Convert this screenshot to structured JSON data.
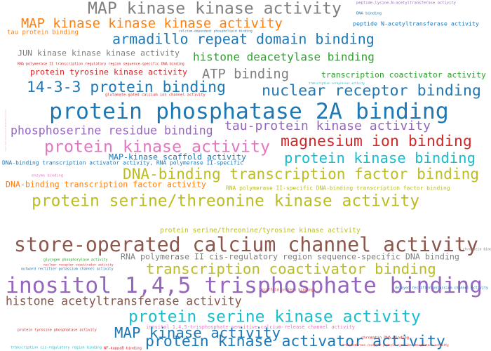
{
  "chart_data": {
    "type": "wordcloud",
    "words": [
      {
        "text": "MAP kinase kinase activity",
        "color": "#7f7f7f"
      },
      {
        "text": "MAP kinase kinase kinase activity",
        "color": "#ff7f0e"
      },
      {
        "text": "tau protein binding",
        "color": "#ff7f0e"
      },
      {
        "text": "armadillo repeat domain binding",
        "color": "#1f77b4"
      },
      {
        "text": "peptide N-acetyltransferase activity",
        "color": "#1f77b4"
      },
      {
        "text": "histone deacetylase binding",
        "color": "#2ca02c"
      },
      {
        "text": "JUN kinase kinase kinase activity",
        "color": "#7f7f7f"
      },
      {
        "text": "ATP binding",
        "color": "#7f7f7f"
      },
      {
        "text": "transcription coactivator activity",
        "color": "#2ca02c"
      },
      {
        "text": "RNA polymerase II transcription regulatory region sequence-specific DNA binding",
        "color": "#d62728"
      },
      {
        "text": "protein tyrosine kinase activity",
        "color": "#d62728"
      },
      {
        "text": "14-3-3 protein binding",
        "color": "#1f77b4"
      },
      {
        "text": "nuclear receptor binding",
        "color": "#1f77b4"
      },
      {
        "text": "glutamate-gated calcium ion channel activity",
        "color": "#d62728"
      },
      {
        "text": "protein phosphatase 2A binding",
        "color": "#1f77b4"
      },
      {
        "text": "phosphoserine residue binding",
        "color": "#9467bd"
      },
      {
        "text": "tau-protein kinase activity",
        "color": "#9467bd"
      },
      {
        "text": "protein kinase activity",
        "color": "#e377c2"
      },
      {
        "text": "magnesium ion binding",
        "color": "#d62728"
      },
      {
        "text": "protein kinase binding",
        "color": "#17becf"
      },
      {
        "text": "MAP-kinase scaffold activity",
        "color": "#1f77b4"
      },
      {
        "text": "DNA-binding transcription activator activity, RNA polymerase II-specific",
        "color": "#1f77b4"
      },
      {
        "text": "DNA-binding transcription factor binding",
        "color": "#bcbd22"
      },
      {
        "text": "DNA-binding transcription factor activity",
        "color": "#ff7f0e"
      },
      {
        "text": "RNA polymerase II-specific DNA-binding transcription factor binding",
        "color": "#bcbd22"
      },
      {
        "text": "protein serine/threonine kinase activity",
        "color": "#bcbd22"
      },
      {
        "text": "protein serine/threonine/tyrosine kinase activity",
        "color": "#bcbd22"
      },
      {
        "text": "store-operated calcium channel activity",
        "color": "#8c564b"
      },
      {
        "text": "RNA polymerase II cis-regulatory region sequence-specific DNA binding",
        "color": "#7f7f7f"
      },
      {
        "text": "transcription coactivator binding",
        "color": "#bcbd22"
      },
      {
        "text": "inositol 1,4,5 trisphosphate binding",
        "color": "#9467bd"
      },
      {
        "text": "histone acetyltransferase activity",
        "color": "#8c564b"
      },
      {
        "text": "protein serine kinase activity",
        "color": "#17becf"
      },
      {
        "text": "inositol 1,4,5-trisphosphate-sensitive calcium-release channel activity",
        "color": "#e377c2"
      },
      {
        "text": "MAP kinase activity",
        "color": "#1f77b4"
      },
      {
        "text": "protein kinase activator activity",
        "color": "#1f77b4"
      },
      {
        "text": "peptide-lysine-N-acetyltransferase activity",
        "color": "#9467bd"
      },
      {
        "text": "DNA binding",
        "color": "#1f77b4"
      },
      {
        "text": "calcium-dependent phospholipid binding",
        "color": "#1f77b4"
      },
      {
        "text": "transcription corepressor activity",
        "color": "#17becf"
      },
      {
        "text": "enzyme binding",
        "color": "#e377c2"
      },
      {
        "text": "chromatin binding",
        "color": "#7f7f7f"
      },
      {
        "text": "glycogen phosphorylase activity",
        "color": "#2ca02c"
      },
      {
        "text": "nuclear receptor coactivator activity",
        "color": "#d62728"
      },
      {
        "text": "outward rectifier potassium channel activity",
        "color": "#1f77b4"
      },
      {
        "text": "scaffold protein binding",
        "color": "#d62728"
      },
      {
        "text": "delayed rectifier potassium channel activity",
        "color": "#1f77b4"
      },
      {
        "text": "protein tyrosine phosphatase activity",
        "color": "#d62728"
      },
      {
        "text": "chromatin DNA binding",
        "color": "#d62728"
      },
      {
        "text": "transmembrane receptor protein tyrosine phosphatase activity",
        "color": "#d62728"
      },
      {
        "text": "transcription cis-regulatory region binding",
        "color": "#17becf"
      },
      {
        "text": "NF-kappaB binding",
        "color": "#d62728"
      },
      {
        "text": "linear malto-oligosaccharide phosphorylase activity",
        "color": "#e377c2"
      }
    ]
  }
}
